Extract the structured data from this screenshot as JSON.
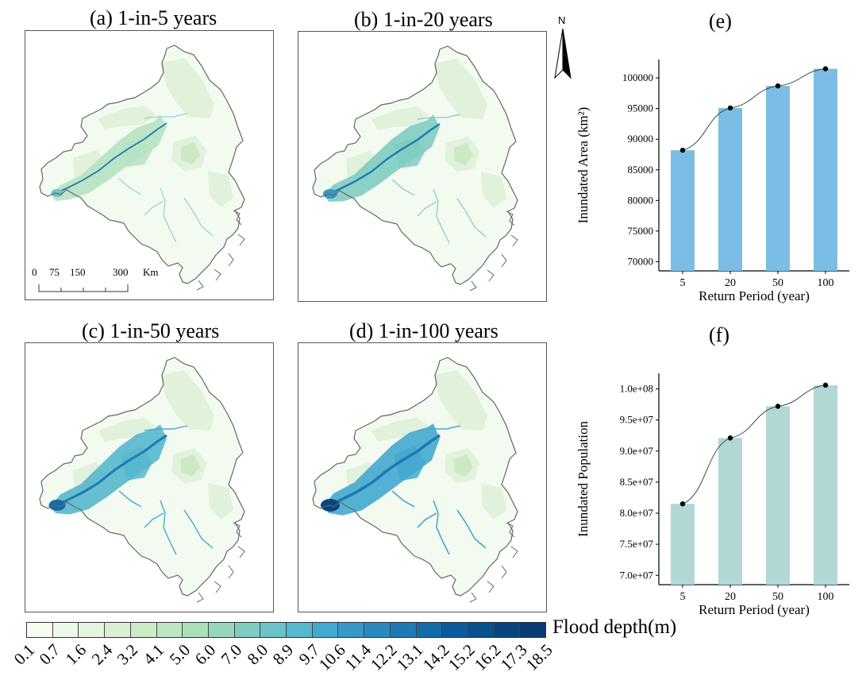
{
  "maps": [
    {
      "title": "(a) 1-in-5 years",
      "flood_level": 1
    },
    {
      "title": "(b) 1-in-20 years",
      "flood_level": 2
    },
    {
      "title": "(c) 1-in-50 years",
      "flood_level": 3
    },
    {
      "title": "(d) 1-in-100 years",
      "flood_level": 4
    }
  ],
  "scalebar": {
    "ticks": [
      "0",
      "75",
      "150",
      "300"
    ],
    "unit": "Km"
  },
  "north_label": "N",
  "legend": {
    "label": "Flood depth(m)",
    "ticks": [
      "0.1",
      "0.7",
      "1.6",
      "2.4",
      "3.2",
      "4.1",
      "5.0",
      "6.0",
      "7.0",
      "8.0",
      "8.9",
      "9.7",
      "10.6",
      "11.4",
      "12.2",
      "13.1",
      "14.2",
      "15.2",
      "16.2",
      "17.3",
      "18.5"
    ],
    "colors": [
      "#f7fcf0",
      "#eef8e8",
      "#e4f4de",
      "#daf0d4",
      "#cdebc6",
      "#bee5bf",
      "#aadfb9",
      "#96d6bb",
      "#80ccc1",
      "#6bc3c8",
      "#56b7cd",
      "#44a9cf",
      "#3798c6",
      "#2b89be",
      "#1f79b4",
      "#156aa8",
      "#0c5b9c",
      "#08508e",
      "#084480",
      "#083a73"
    ]
  },
  "chart_data": [
    {
      "panel": "(e)",
      "type": "bar",
      "categories": [
        "5",
        "20",
        "50",
        "100"
      ],
      "values": [
        88200,
        95100,
        98700,
        101500
      ],
      "ylim": [
        68500,
        103000
      ],
      "yticks": [
        70000,
        75000,
        80000,
        85000,
        90000,
        95000,
        100000
      ],
      "ytick_labels": [
        "70000",
        "75000",
        "80000",
        "85000",
        "90000",
        "95000",
        "100000"
      ],
      "xlabel": "Return Period (year)",
      "ylabel": "Inundated Area (km²)",
      "bar_color": "#7bbde4",
      "line": true
    },
    {
      "panel": "(f)",
      "type": "bar",
      "categories": [
        "5",
        "20",
        "50",
        "100"
      ],
      "values": [
        81500000,
        92100000,
        97200000,
        100600000
      ],
      "ylim": [
        68500000,
        102500000
      ],
      "yticks": [
        70000000,
        75000000,
        80000000,
        85000000,
        90000000,
        95000000,
        100000000
      ],
      "ytick_labels": [
        "7.0e+07",
        "7.5e+07",
        "8.0e+07",
        "8.5e+07",
        "9.0e+07",
        "9.5e+07",
        "1.0e+08"
      ],
      "xlabel": "Return Period (year)",
      "ylabel": "Inundated Population",
      "bar_color": "#b2d8d6",
      "line": true
    }
  ]
}
